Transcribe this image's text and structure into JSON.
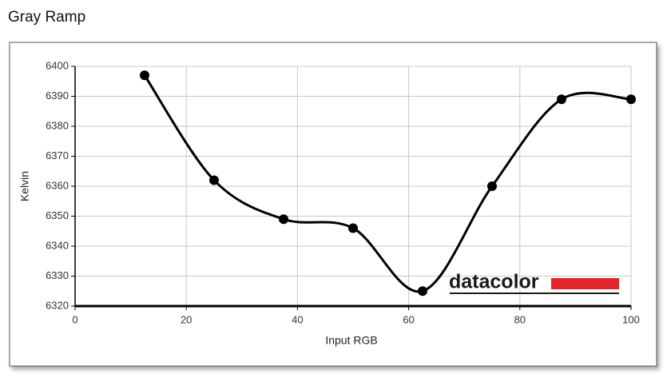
{
  "chart_data": {
    "type": "line",
    "title": "Gray Ramp",
    "x_label": "Input RGB",
    "y_label": "Kelvin",
    "watermark": "datacolor",
    "x": [
      12.5,
      25,
      37.5,
      50,
      62.5,
      75,
      87.5,
      100
    ],
    "values": [
      6397,
      6362,
      6349,
      6346,
      6325,
      6360,
      6389,
      6389
    ],
    "color": "#000000",
    "smooth": true,
    "grid": true,
    "xlim": [
      0,
      100
    ],
    "xticks": [
      0,
      20,
      40,
      60,
      80,
      100
    ],
    "ylim": [
      6320,
      6400
    ],
    "yticks": [
      6320,
      6330,
      6340,
      6350,
      6360,
      6370,
      6380,
      6390,
      6400
    ]
  }
}
